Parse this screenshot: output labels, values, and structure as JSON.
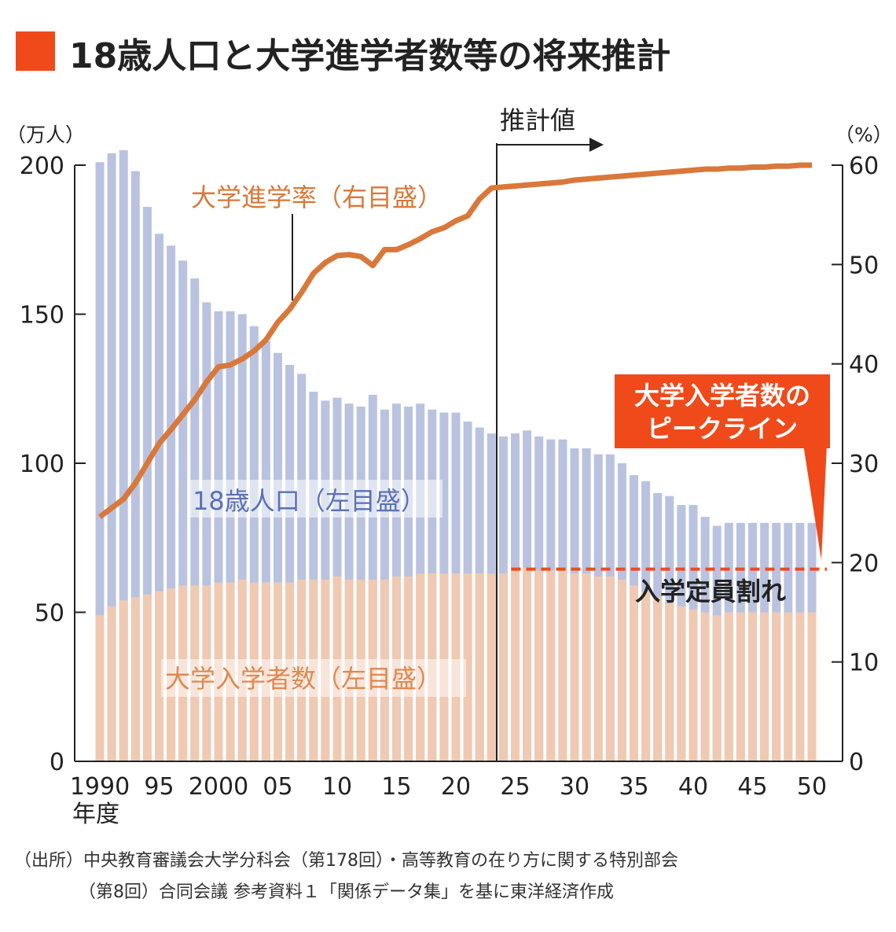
{
  "chart_data": {
    "type": "bar+line",
    "title": "18歳人口と大学進学者数等の将来推計",
    "accent_color": "#f04a1a",
    "left_unit": "（万人）",
    "right_unit": "（%）",
    "ylim_left": [
      0,
      200
    ],
    "ylim_right": [
      0,
      60
    ],
    "yticks_left": [
      "0",
      "50",
      "100",
      "150",
      "200"
    ],
    "yticks_right": [
      "0",
      "10",
      "20",
      "30",
      "40",
      "50",
      "60"
    ],
    "xtick_labels": [
      "1990",
      "95",
      "2000",
      "05",
      "10",
      "15",
      "20",
      "25",
      "30",
      "35",
      "40",
      "45",
      "50"
    ],
    "xlabel": "年度",
    "projection_label": "推計値",
    "projection_start_year": 2024,
    "years": [
      1990,
      1991,
      1992,
      1993,
      1994,
      1995,
      1996,
      1997,
      1998,
      1999,
      2000,
      2001,
      2002,
      2003,
      2004,
      2005,
      2006,
      2007,
      2008,
      2009,
      2010,
      2011,
      2012,
      2013,
      2014,
      2015,
      2016,
      2017,
      2018,
      2019,
      2020,
      2021,
      2022,
      2023,
      2024,
      2025,
      2026,
      2027,
      2028,
      2029,
      2030,
      2031,
      2032,
      2033,
      2034,
      2035,
      2036,
      2037,
      2038,
      2039,
      2040,
      2041,
      2042,
      2043,
      2044,
      2045,
      2046,
      2047,
      2048,
      2049,
      2050
    ],
    "series": [
      {
        "name": "18歳人口（左目盛）",
        "axis": "left",
        "type": "bar",
        "color": "#b9c3e0",
        "label_color": "#5a6fb5",
        "values": [
          201,
          204,
          205,
          198,
          186,
          177,
          173,
          168,
          162,
          154,
          151,
          151,
          150,
          146,
          141,
          137,
          133,
          130,
          124,
          121,
          122,
          120,
          119,
          123,
          118,
          120,
          119,
          120,
          118,
          117,
          117,
          114,
          112,
          110,
          109,
          110,
          111,
          109,
          108,
          108,
          105,
          105,
          103,
          103,
          100,
          96,
          94,
          90,
          89,
          86,
          86,
          82,
          79,
          80,
          80,
          80,
          80,
          80,
          80,
          80,
          80
        ]
      },
      {
        "name": "大学入学者数（左目盛）",
        "axis": "left",
        "type": "bar",
        "color": "#f0c9b2",
        "label_color": "#e0884e",
        "values": [
          49,
          52,
          54,
          55,
          56,
          57,
          58,
          59,
          59,
          59,
          60,
          60,
          61,
          60,
          60,
          60,
          60,
          61,
          61,
          61,
          62,
          61,
          61,
          61,
          61,
          62,
          62,
          63,
          63,
          63,
          63,
          63,
          63,
          63,
          63,
          64,
          65,
          64,
          64,
          64,
          63,
          63,
          62,
          62,
          61,
          59,
          57,
          55,
          53,
          52,
          51,
          50,
          49,
          50,
          50,
          50,
          50,
          50,
          50,
          50,
          50
        ]
      },
      {
        "name": "大学進学率（右目盛）",
        "axis": "right",
        "type": "line",
        "color": "#d9783a",
        "values": [
          24.6,
          25.5,
          26.4,
          28.0,
          30.0,
          32.0,
          33.4,
          34.9,
          36.4,
          38.2,
          39.7,
          39.9,
          40.5,
          41.3,
          42.4,
          44.2,
          45.5,
          47.2,
          49.1,
          50.2,
          50.9,
          51.0,
          50.8,
          49.9,
          51.5,
          51.5,
          52.0,
          52.6,
          53.3,
          53.7,
          54.4,
          54.9,
          56.6,
          57.7,
          57.8,
          57.9,
          58.0,
          58.1,
          58.2,
          58.3,
          58.5,
          58.6,
          58.7,
          58.8,
          58.9,
          59.0,
          59.1,
          59.2,
          59.3,
          59.4,
          59.5,
          59.6,
          59.6,
          59.7,
          59.7,
          59.8,
          59.8,
          59.9,
          59.9,
          60.0,
          60.0
        ]
      }
    ],
    "annotations": {
      "peak_box": [
        "大学入学者数の",
        "ピークライン"
      ],
      "peak_value": 65,
      "peak_color": "#f04a1a",
      "undercapacity": "入学定員割れ"
    },
    "source": [
      "（出所）中央教育審議会大学分科会（第178回）・高等教育の在り方に関する特別部会",
      "（第8回）合同会議 参考資料１「関係データ集」を基に東洋経済作成"
    ]
  }
}
